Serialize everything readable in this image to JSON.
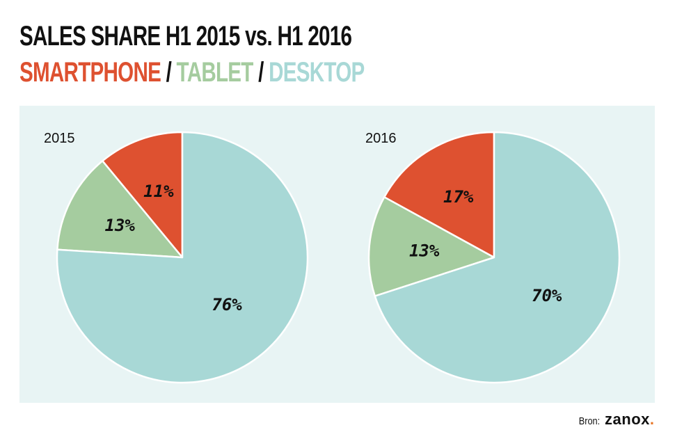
{
  "title": {
    "line1": "SALES SHARE H1 2015 vs. H1 2016",
    "segments": [
      {
        "text": "SMARTPHONE",
        "color": "#de5130"
      },
      {
        "text": " / ",
        "color": "#111111"
      },
      {
        "text": "TABLET",
        "color": "#a5cc9f"
      },
      {
        "text": " / ",
        "color": "#111111"
      },
      {
        "text": "DESKTOP",
        "color": "#a8d8d6"
      }
    ]
  },
  "colors": {
    "smartphone": "#de5130",
    "tablet": "#a5cc9f",
    "desktop": "#a8d8d6",
    "panel": "#e8f4f4"
  },
  "source": {
    "label": "Bron:",
    "brand": "zanox",
    "brand_dot": "."
  },
  "chart_data": [
    {
      "type": "pie",
      "title": "2015",
      "slices": [
        {
          "name": "Smartphone",
          "value": 11,
          "label": "11%",
          "color": "#de5130"
        },
        {
          "name": "Tablet",
          "value": 13,
          "label": "13%",
          "color": "#a5cc9f"
        },
        {
          "name": "Desktop",
          "value": 76,
          "label": "76%",
          "color": "#a8d8d6"
        }
      ]
    },
    {
      "type": "pie",
      "title": "2016",
      "slices": [
        {
          "name": "Smartphone",
          "value": 17,
          "label": "17%",
          "color": "#de5130"
        },
        {
          "name": "Tablet",
          "value": 13,
          "label": "13%",
          "color": "#a5cc9f"
        },
        {
          "name": "Desktop",
          "value": 70,
          "label": "70%",
          "color": "#a8d8d6"
        }
      ]
    }
  ]
}
